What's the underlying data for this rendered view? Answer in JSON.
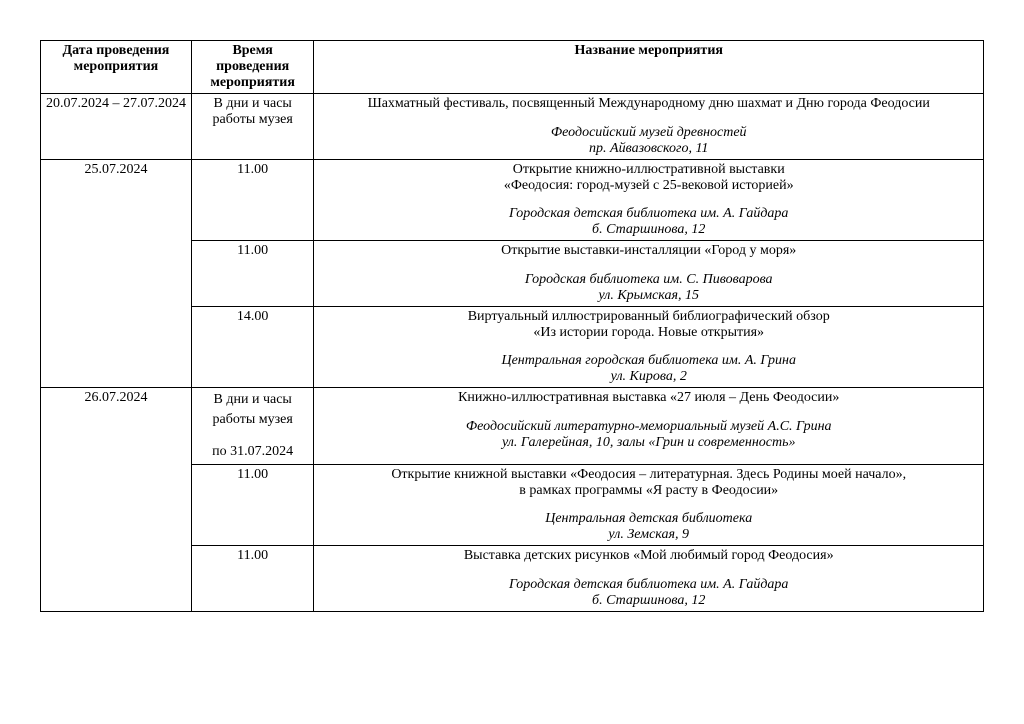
{
  "header": {
    "date": "Дата проведения мероприятия",
    "time": "Время проведения мероприятия",
    "title": "Название мероприятия"
  },
  "rows": [
    {
      "date": "20.07.2024 – 27.07.2024",
      "time": "В дни и часы работы музея",
      "title": "Шахматный фестиваль, посвященный Международному дню шахмат и Дню города Феодосии",
      "subtitle": "",
      "venue": "Феодосийский музей древностей",
      "address": "пр. Айвазовского, 11"
    },
    {
      "date": "25.07.2024",
      "time": "11.00",
      "title": "Открытие книжно-иллюстративной выставки",
      "subtitle": "«Феодосия: город-музей с 25-вековой историей»",
      "venue": "Городская детская библиотека им. А. Гайдара",
      "address": "б. Старшинова, 12"
    },
    {
      "date": "",
      "time": "11.00",
      "title": "Открытие выставки-инсталляции «Город у моря»",
      "subtitle": "",
      "venue": "Городская библиотека им. С. Пивоварова",
      "address": "ул. Крымская, 15"
    },
    {
      "date": "",
      "time": "14.00",
      "title": "Виртуальный иллюстрированный библиографический обзор",
      "subtitle": "«Из истории города. Новые открытия»",
      "venue": "Центральная городская библиотека им. А. Грина",
      "address": "ул. Кирова, 2"
    },
    {
      "date": "26.07.2024",
      "time_l1": "В дни и часы работы музея",
      "time_l2": "по 31.07.2024",
      "title": "Книжно-иллюстративная выставка «27 июля – День Феодосии»",
      "subtitle": "",
      "venue": "Феодосийский литературно-мемориальный музей А.С. Грина",
      "address": "ул. Галерейная, 10, залы «Грин и современность»"
    },
    {
      "date": "",
      "time": "11.00",
      "title": "Открытие книжной выставки «Феодосия – литературная. Здесь Родины моей начало»,",
      "subtitle": "в рамках программы «Я расту в Феодосии»",
      "venue": "Центральная детская библиотека",
      "address": "ул. Земская, 9"
    },
    {
      "date": "",
      "time": "11.00",
      "title": "Выставка детских рисунков «Мой любимый город Феодосия»",
      "subtitle": "",
      "venue": "Городская детская библиотека им. А. Гайдара",
      "address": "б. Старшинова, 12"
    }
  ]
}
